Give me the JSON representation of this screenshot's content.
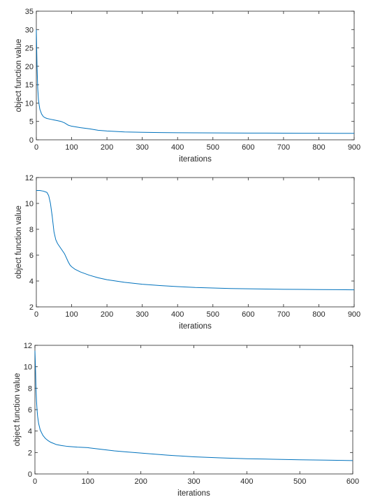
{
  "chart_data": [
    {
      "type": "line",
      "xlabel": "iterations",
      "ylabel": "object function value",
      "xlim": [
        0,
        900
      ],
      "ylim": [
        0,
        35
      ],
      "xticks": [
        "0",
        "100",
        "200",
        "300",
        "400",
        "500",
        "600",
        "700",
        "800",
        "900"
      ],
      "yticks": [
        "0",
        "5",
        "10",
        "15",
        "20",
        "25",
        "30",
        "35"
      ],
      "grid": false,
      "line_color": "#0072BD",
      "series": [
        {
          "x": [
            0,
            2,
            4,
            6,
            8,
            10,
            15,
            20,
            25,
            30,
            40,
            50,
            60,
            70,
            80,
            90,
            100,
            125,
            150,
            175,
            200,
            250,
            300,
            350,
            400,
            450,
            500,
            550,
            600,
            650,
            700,
            750,
            800,
            850,
            900
          ],
          "y": [
            30,
            20,
            14,
            11,
            9.5,
            8.3,
            7,
            6.3,
            6,
            5.8,
            5.6,
            5.4,
            5.2,
            5,
            4.6,
            4,
            3.7,
            3.3,
            3,
            2.6,
            2.4,
            2.15,
            2.05,
            1.98,
            1.93,
            1.9,
            1.87,
            1.85,
            1.84,
            1.82,
            1.8,
            1.79,
            1.78,
            1.77,
            1.76
          ]
        }
      ]
    },
    {
      "type": "line",
      "xlabel": "iterations",
      "ylabel": "object function value",
      "xlim": [
        0,
        900
      ],
      "ylim": [
        2,
        12
      ],
      "xticks": [
        "0",
        "100",
        "200",
        "300",
        "400",
        "500",
        "600",
        "700",
        "800",
        "900"
      ],
      "yticks": [
        "2",
        "4",
        "6",
        "8",
        "10",
        "12"
      ],
      "grid": false,
      "line_color": "#0072BD",
      "series": [
        {
          "x": [
            0,
            10,
            20,
            30,
            35,
            40,
            45,
            50,
            55,
            60,
            70,
            80,
            85,
            90,
            95,
            100,
            110,
            125,
            150,
            175,
            200,
            250,
            300,
            350,
            400,
            450,
            500,
            550,
            600,
            650,
            700,
            750,
            800,
            850,
            900
          ],
          "y": [
            11,
            11,
            10.95,
            10.85,
            10.6,
            10,
            9,
            7.8,
            7.2,
            6.9,
            6.5,
            6.1,
            5.8,
            5.5,
            5.25,
            5.1,
            4.9,
            4.7,
            4.45,
            4.25,
            4.1,
            3.9,
            3.75,
            3.65,
            3.57,
            3.5,
            3.46,
            3.42,
            3.4,
            3.38,
            3.36,
            3.35,
            3.34,
            3.33,
            3.32
          ]
        }
      ]
    },
    {
      "type": "line",
      "xlabel": "iterations",
      "ylabel": "object function value",
      "xlim": [
        0,
        600
      ],
      "ylim": [
        0,
        12
      ],
      "xticks": [
        "0",
        "100",
        "200",
        "300",
        "400",
        "500",
        "600"
      ],
      "yticks": [
        "0",
        "2",
        "4",
        "6",
        "8",
        "10",
        "12"
      ],
      "grid": false,
      "line_color": "#0072BD",
      "series": [
        {
          "x": [
            0,
            1,
            2,
            3,
            4,
            5,
            7,
            10,
            15,
            20,
            25,
            30,
            40,
            50,
            60,
            80,
            100,
            125,
            150,
            175,
            200,
            250,
            300,
            350,
            400,
            450,
            500,
            550,
            600
          ],
          "y": [
            11.5,
            10,
            8,
            6.8,
            6,
            5.4,
            4.7,
            4.1,
            3.6,
            3.3,
            3.1,
            2.95,
            2.75,
            2.65,
            2.58,
            2.5,
            2.45,
            2.3,
            2.15,
            2.05,
            1.95,
            1.75,
            1.6,
            1.5,
            1.42,
            1.37,
            1.32,
            1.29,
            1.25
          ]
        }
      ]
    }
  ]
}
